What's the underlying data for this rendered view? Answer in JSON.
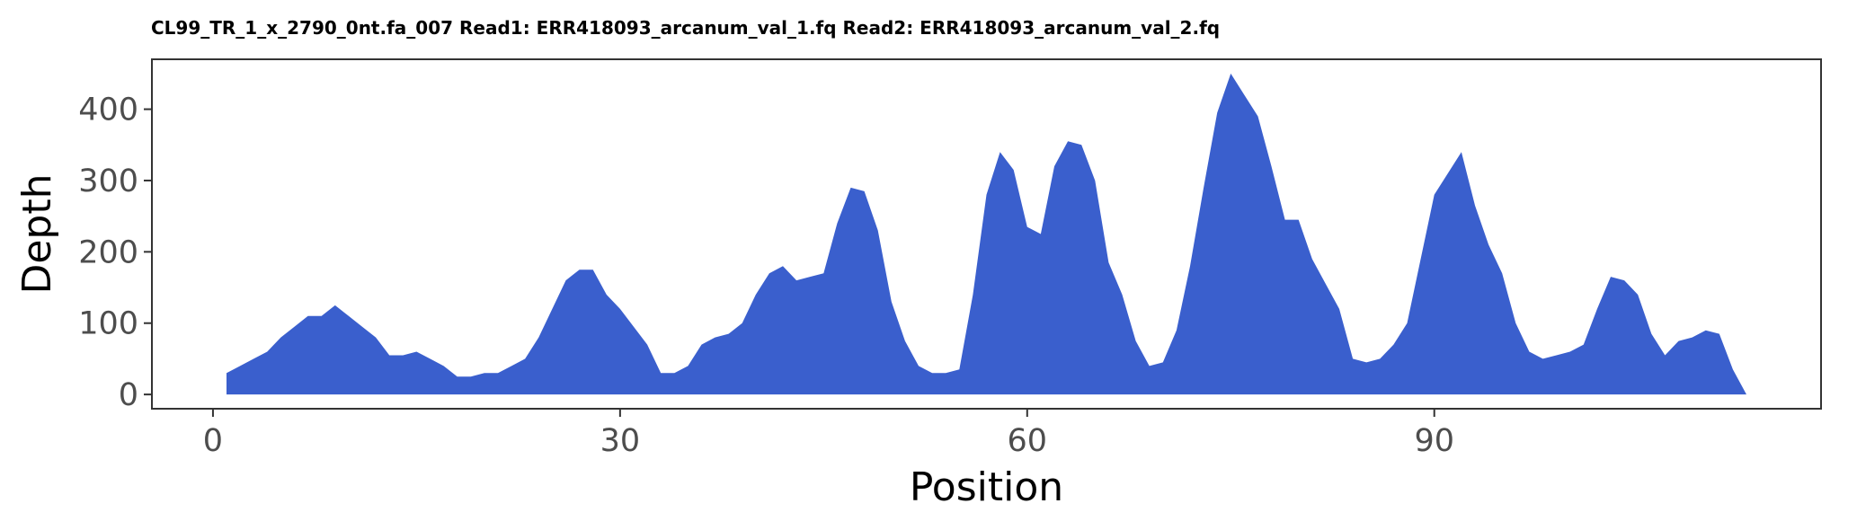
{
  "chart_data": {
    "type": "area",
    "title": "CL99_TR_1_x_2790_0nt.fa_007 Read1: ERR418093_arcanum_val_1.fq Read2: ERR418093_arcanum_val_2.fq",
    "xlabel": "Position",
    "ylabel": "Depth",
    "xlim": [
      -4.5,
      118.5
    ],
    "ylim": [
      -20,
      470
    ],
    "x_ticks": [
      0,
      30,
      60,
      90
    ],
    "y_ticks": [
      0,
      100,
      200,
      300,
      400
    ],
    "x_tick_labels": [
      "0",
      "30",
      "60",
      "90"
    ],
    "y_tick_labels": [
      "0",
      "100",
      "200",
      "300",
      "400"
    ],
    "grid": false,
    "legend": "none",
    "fill_color": "#3a5fcd",
    "x": [
      1,
      2,
      3,
      4,
      5,
      6,
      7,
      8,
      9,
      10,
      11,
      12,
      13,
      14,
      15,
      16,
      17,
      18,
      19,
      20,
      21,
      22,
      23,
      24,
      25,
      26,
      27,
      28,
      29,
      30,
      31,
      32,
      33,
      34,
      35,
      36,
      37,
      38,
      39,
      40,
      41,
      42,
      43,
      44,
      45,
      46,
      47,
      48,
      49,
      50,
      51,
      52,
      53,
      54,
      55,
      56,
      57,
      58,
      59,
      60,
      61,
      62,
      63,
      64,
      65,
      66,
      67,
      68,
      69,
      70,
      71,
      72,
      73,
      74,
      75,
      76,
      77,
      78,
      79,
      80,
      81,
      82,
      83,
      84,
      85,
      86,
      87,
      88,
      89,
      90,
      91,
      92,
      93,
      94,
      95,
      96,
      97,
      98,
      99,
      100,
      101,
      102,
      103,
      104,
      105,
      106,
      107,
      108,
      109,
      110,
      111,
      112,
      113
    ],
    "y": [
      30,
      40,
      50,
      60,
      80,
      95,
      110,
      110,
      125,
      110,
      95,
      80,
      55,
      55,
      60,
      50,
      40,
      25,
      25,
      30,
      30,
      40,
      50,
      80,
      120,
      160,
      175,
      175,
      140,
      120,
      95,
      70,
      30,
      30,
      40,
      70,
      80,
      85,
      100,
      140,
      170,
      180,
      160,
      165,
      170,
      240,
      290,
      285,
      230,
      130,
      75,
      40,
      30,
      30,
      35,
      140,
      280,
      340,
      315,
      235,
      225,
      320,
      355,
      350,
      300,
      185,
      140,
      75,
      40,
      45,
      90,
      180,
      290,
      395,
      450,
      420,
      390,
      320,
      245,
      245,
      190,
      155,
      120,
      50,
      45,
      50,
      70,
      100,
      190,
      280,
      310,
      340,
      265,
      210,
      170,
      100,
      60,
      50,
      55,
      60,
      70,
      120,
      165,
      160,
      140,
      85,
      55,
      75,
      80,
      90,
      85,
      35,
      0
    ]
  }
}
